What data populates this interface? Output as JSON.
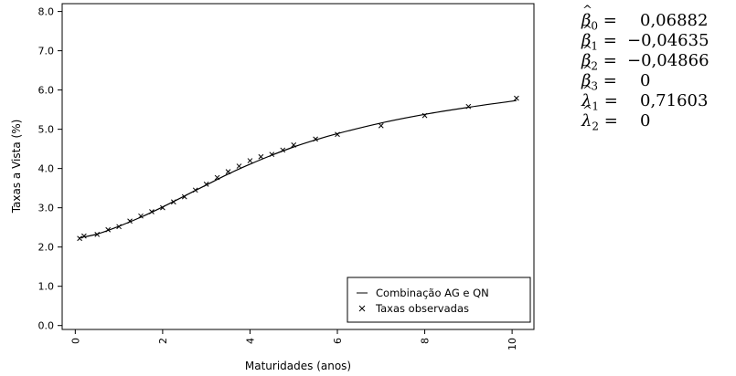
{
  "chart_data": {
    "type": "line",
    "xlabel": "Maturidades (anos)",
    "ylabel": "Taxas a Vista (%)",
    "xlim": [
      -0.3,
      10.5
    ],
    "ylim": [
      -0.1,
      8.2
    ],
    "x_ticks": [
      "0",
      "2",
      "4",
      "6",
      "8",
      "10"
    ],
    "y_ticks": [
      "0.0",
      "1.0",
      "2.0",
      "3.0",
      "4.0",
      "5.0",
      "6.0",
      "7.0",
      "8.0"
    ],
    "grid": false,
    "legend_position": "bottom-right",
    "series": [
      {
        "name": "Combinação AG e QN",
        "style": "line",
        "x": [
          0.1,
          0.5,
          1.0,
          1.5,
          2.0,
          2.5,
          3.0,
          3.5,
          4.0,
          4.5,
          5.0,
          5.5,
          6.0,
          7.0,
          8.0,
          9.0,
          10.1
        ],
        "y": [
          2.24,
          2.33,
          2.53,
          2.76,
          3.02,
          3.3,
          3.58,
          3.86,
          4.11,
          4.34,
          4.55,
          4.73,
          4.89,
          5.16,
          5.38,
          5.56,
          5.73
        ]
      },
      {
        "name": "Taxas observadas",
        "style": "x-marker",
        "x": [
          0.1,
          0.2,
          0.5,
          0.75,
          1.0,
          1.25,
          1.5,
          1.75,
          2.0,
          2.25,
          2.5,
          2.75,
          3.0,
          3.25,
          3.5,
          3.75,
          4.0,
          4.25,
          4.5,
          4.75,
          5.0,
          5.5,
          6.0,
          7.0,
          8.0,
          9.0,
          10.1
        ],
        "y": [
          2.22,
          2.28,
          2.32,
          2.44,
          2.52,
          2.66,
          2.79,
          2.9,
          3.0,
          3.15,
          3.28,
          3.45,
          3.6,
          3.77,
          3.92,
          4.06,
          4.2,
          4.3,
          4.36,
          4.47,
          4.6,
          4.75,
          4.87,
          5.09,
          5.35,
          5.58,
          5.79
        ]
      }
    ]
  },
  "parameters": [
    {
      "base": "β",
      "sub": "0",
      "value": "0,06882"
    },
    {
      "base": "β",
      "sub": "1",
      "value": "−0,04635"
    },
    {
      "base": "β",
      "sub": "2",
      "value": "−0,04866"
    },
    {
      "base": "β",
      "sub": "3",
      "value": "0"
    },
    {
      "base": "λ",
      "sub": "1",
      "value": "0,71603"
    },
    {
      "base": "λ",
      "sub": "2",
      "value": "0"
    }
  ]
}
